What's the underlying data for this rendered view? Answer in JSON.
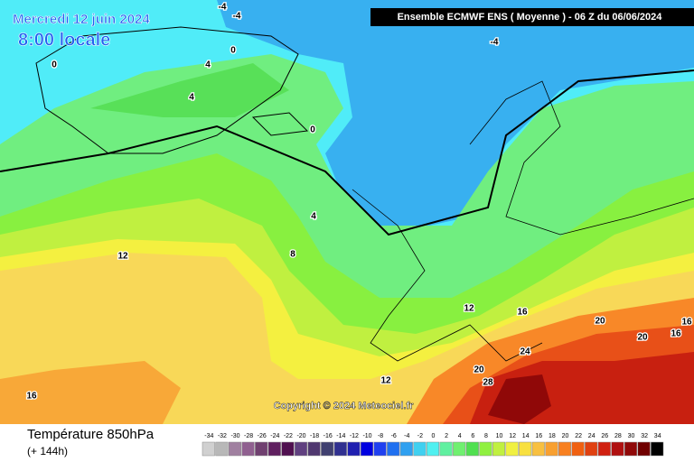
{
  "header": {
    "date": "Mercredi 12 juin 2024",
    "time": "8:00 locale",
    "model": "Ensemble ECMWF ENS  ( Moyenne )  -  06 Z du 06/06/2024"
  },
  "contour_labels": [
    "-4",
    "-4",
    "-4",
    "0",
    "0",
    "4",
    "4",
    "0",
    "4",
    "8",
    "12",
    "12",
    "16",
    "20",
    "16",
    "20",
    "16",
    "24",
    "20",
    "28",
    "12",
    "16"
  ],
  "copyright": "Copyright © 2024 Meteociel.fr",
  "footer": {
    "title": "Température 850hPa",
    "lead": "(+ 144h)"
  },
  "legend": {
    "ticks": [
      -34,
      -32,
      -30,
      -28,
      -26,
      -24,
      -22,
      -20,
      -18,
      -16,
      -14,
      -12,
      -10,
      -8,
      -6,
      -4,
      -2,
      0,
      2,
      4,
      6,
      8,
      10,
      12,
      14,
      16,
      18,
      20,
      22,
      24,
      26,
      28,
      30,
      32,
      34
    ],
    "colors": [
      "#d0d0d0",
      "#b8b8b8",
      "#a080a0",
      "#906090",
      "#704070",
      "#602060",
      "#501050",
      "#604080",
      "#503870",
      "#404070",
      "#303090",
      "#2020b0",
      "#0000e0",
      "#2040f0",
      "#2070f0",
      "#30a0f0",
      "#40d0f0",
      "#50f0f0",
      "#60f0a0",
      "#70f070",
      "#50e050",
      "#90f040",
      "#c0f040",
      "#f0f040",
      "#f8e040",
      "#f8c040",
      "#f8a030",
      "#f88020",
      "#f06010",
      "#e04010",
      "#d02010",
      "#b01010",
      "#900808",
      "#700000",
      "#000000"
    ]
  }
}
